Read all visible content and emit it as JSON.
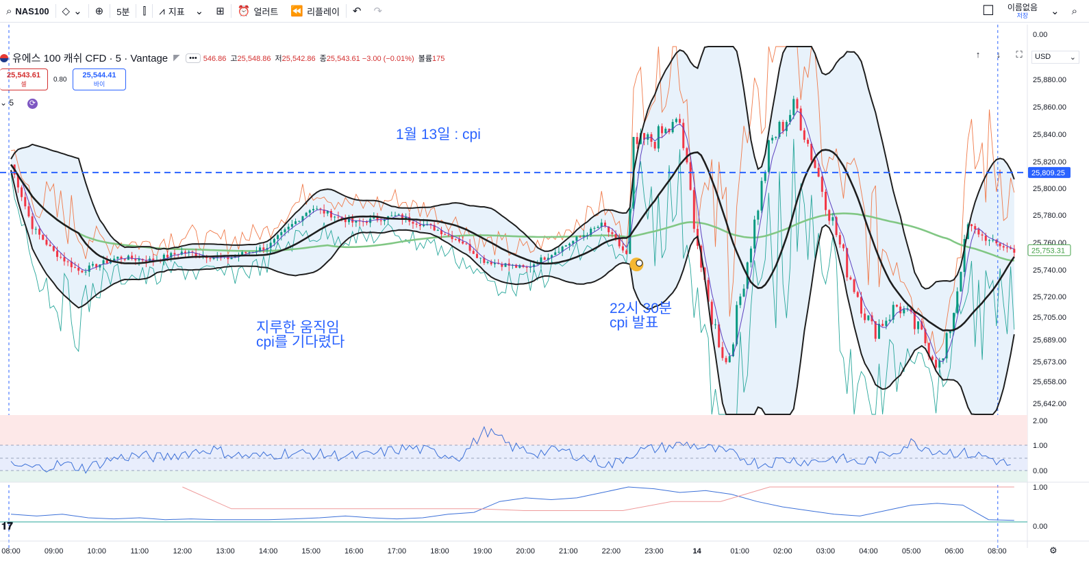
{
  "toolbar": {
    "symbol": "NAS100",
    "interval": "5분",
    "indicators": "지표",
    "alerts": "얼러트",
    "replay": "리플레이",
    "layout_name": "이름없음",
    "save_status": "저장"
  },
  "legend": {
    "name": "유에스 100 캐쉬 CFD · 5 · Vantage",
    "ohlc_partial": "546.86",
    "high_label": "고",
    "high": "25,548.86",
    "low_label": "저",
    "low": "25,542.86",
    "close_label": "종",
    "close": "25,543.61",
    "change": "−3.00 (−0.01%)",
    "volume_label": "볼륨",
    "volume": "175",
    "menu": "•••"
  },
  "trade": {
    "sell_price": "25,543.61",
    "sell_label": "셀",
    "spread": "0.80",
    "buy_price": "25,544.41",
    "buy_label": "바이"
  },
  "interval_chip": "5",
  "currency": "USD",
  "annotations": {
    "cpi_title": "1월 13일 : cpi",
    "boring": "지루한 움직임\ncpi를 기다렸다",
    "release": "22시 30분\ncpi 발표"
  },
  "colors": {
    "up": "#089981",
    "down": "#f23645",
    "bb_band": "#1e1e1e",
    "bb_fill": "#d6e8f7",
    "ma_green": "#81c784",
    "env_upper": "#f07a4a",
    "env_lower": "#26a69a",
    "accent": "#2962ff",
    "purple": "#5b3fbf"
  },
  "chart_data": [
    {
      "type": "candlestick",
      "title": "",
      "x_ticks": [
        "08:00",
        "09:00",
        "10:00",
        "11:00",
        "12:00",
        "13:00",
        "14:00",
        "15:00",
        "16:00",
        "17:00",
        "18:00",
        "19:00",
        "20:00",
        "21:00",
        "22:00",
        "23:00",
        "14",
        "01:00",
        "02:00",
        "03:00",
        "04:00",
        "05:00",
        "06:00",
        "08:00"
      ],
      "y_ticks": [
        "0.00",
        "25,880.00",
        "25,860.00",
        "25,840.00",
        "25,820.00",
        "25,800.00",
        "25,780.00",
        "25,760.00",
        "25,740.00",
        "25,720.00",
        "25,705.00",
        "25,689.00",
        "25,673.00",
        "25,658.00",
        "25,642.00"
      ],
      "ylim": [
        25635,
        25900
      ],
      "price_labels": [
        {
          "value": 25809.25,
          "text": "25,809.25"
        },
        {
          "value": 25753.31,
          "text": "25,753.31"
        }
      ],
      "close_path": [
        {
          "t": 0.0,
          "v": 25815
        },
        {
          "t": 0.5,
          "v": 25770
        },
        {
          "t": 1.0,
          "v": 25752
        },
        {
          "t": 1.6,
          "v": 25738
        },
        {
          "t": 2.5,
          "v": 25748
        },
        {
          "t": 3.3,
          "v": 25746
        },
        {
          "t": 4.0,
          "v": 25752
        },
        {
          "t": 5.0,
          "v": 25747
        },
        {
          "t": 6.0,
          "v": 25756
        },
        {
          "t": 7.0,
          "v": 25784
        },
        {
          "t": 8.0,
          "v": 25773
        },
        {
          "t": 9.0,
          "v": 25778
        },
        {
          "t": 9.8,
          "v": 25770
        },
        {
          "t": 10.5,
          "v": 25760
        },
        {
          "t": 11.0,
          "v": 25746
        },
        {
          "t": 12.0,
          "v": 25740
        },
        {
          "t": 13.0,
          "v": 25758
        },
        {
          "t": 13.8,
          "v": 25772
        },
        {
          "t": 14.4,
          "v": 25748
        },
        {
          "t": 14.5,
          "v": 25828
        },
        {
          "t": 15.0,
          "v": 25833
        },
        {
          "t": 15.6,
          "v": 25845
        },
        {
          "t": 16.2,
          "v": 25720
        },
        {
          "t": 16.7,
          "v": 25670
        },
        {
          "t": 17.2,
          "v": 25750
        },
        {
          "t": 17.7,
          "v": 25830
        },
        {
          "t": 18.3,
          "v": 25858
        },
        {
          "t": 18.9,
          "v": 25800
        },
        {
          "t": 19.5,
          "v": 25740
        },
        {
          "t": 20.1,
          "v": 25695
        },
        {
          "t": 20.7,
          "v": 25714
        },
        {
          "t": 21.3,
          "v": 25689
        },
        {
          "t": 21.7,
          "v": 25668
        },
        {
          "t": 22.0,
          "v": 25712
        },
        {
          "t": 22.3,
          "v": 25772
        },
        {
          "t": 22.8,
          "v": 25760
        },
        {
          "t": 23.4,
          "v": 25753
        }
      ]
    },
    {
      "type": "line",
      "title": "",
      "y_ticks": [
        "2.00",
        "1.00",
        "0.00"
      ],
      "ylim": [
        -0.4,
        2.0
      ],
      "series": [
        {
          "values": [
            0.2,
            0.1,
            0.25,
            0.1,
            0.45,
            0.6,
            0.5,
            0.7,
            0.85,
            0.6,
            0.55,
            0.7,
            0.65,
            0.6,
            0.55,
            0.75,
            0.9,
            0.7,
            0.55,
            1.6,
            0.95,
            0.7,
            0.8,
            0.5,
            0.2,
            0.75,
            0.9,
            1.05,
            0.85,
            0.6,
            0.25,
            0.45,
            0.35,
            0.5,
            0.3,
            0.6,
            1.1,
            0.8,
            0.7,
            0.55,
            0.2
          ]
        }
      ]
    },
    {
      "type": "line",
      "title": "",
      "y_ticks": [
        "1.00",
        "0.00"
      ],
      "ylim": [
        0,
        1.1
      ],
      "series": [
        {
          "values": [
            0.25,
            0.2,
            0.25,
            0.15,
            0.12,
            0.15,
            0.1,
            0.12,
            0.1,
            0.1,
            0.1,
            0.12,
            0.15,
            0.2,
            0.15,
            0.12,
            0.15,
            0.25,
            0.3,
            0.6,
            0.7,
            0.65,
            0.7,
            0.85,
            1.0,
            0.95,
            0.85,
            0.9,
            0.8,
            0.6,
            0.45,
            0.35,
            0.25,
            0.2,
            0.35,
            0.5,
            0.55,
            0.5,
            0.1,
            0.08
          ]
        },
        {
          "values": [
            1.0,
            0.4,
            0.4,
            0.4,
            0.4,
            0.4,
            0.4,
            0.35,
            0.35,
            0.35,
            0.6,
            0.6,
            1.0,
            1.0,
            1.0,
            1.0,
            1.0,
            1.0
          ]
        }
      ]
    }
  ]
}
